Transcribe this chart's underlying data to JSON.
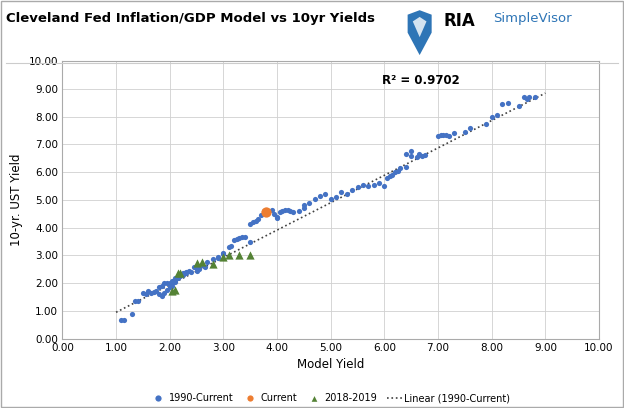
{
  "title": "Cleveland Fed Inflation/GDP Model vs 10yr Yields",
  "xlabel": "Model Yield",
  "ylabel": "10-yr. UST Yield",
  "r_squared": "R² = 0.9702",
  "xlim": [
    0.0,
    10.0
  ],
  "ylim": [
    0.0,
    10.0
  ],
  "xticks": [
    0.0,
    1.0,
    2.0,
    3.0,
    4.0,
    5.0,
    6.0,
    7.0,
    8.0,
    9.0,
    10.0
  ],
  "yticks": [
    0.0,
    1.0,
    2.0,
    3.0,
    4.0,
    5.0,
    6.0,
    7.0,
    8.0,
    9.0,
    10.0
  ],
  "blue_dots": [
    [
      1.1,
      0.67
    ],
    [
      1.15,
      0.68
    ],
    [
      1.3,
      0.88
    ],
    [
      1.35,
      1.35
    ],
    [
      1.4,
      1.35
    ],
    [
      1.5,
      1.65
    ],
    [
      1.55,
      1.62
    ],
    [
      1.6,
      1.7
    ],
    [
      1.65,
      1.65
    ],
    [
      1.7,
      1.68
    ],
    [
      1.75,
      1.72
    ],
    [
      1.8,
      1.85
    ],
    [
      1.8,
      1.6
    ],
    [
      1.85,
      1.9
    ],
    [
      1.85,
      1.55
    ],
    [
      1.9,
      2.0
    ],
    [
      1.9,
      1.65
    ],
    [
      1.95,
      2.0
    ],
    [
      1.95,
      1.75
    ],
    [
      2.0,
      2.0
    ],
    [
      2.0,
      1.95
    ],
    [
      2.0,
      1.85
    ],
    [
      2.05,
      2.08
    ],
    [
      2.05,
      2.0
    ],
    [
      2.05,
      1.9
    ],
    [
      2.1,
      2.2
    ],
    [
      2.1,
      2.1
    ],
    [
      2.1,
      2.05
    ],
    [
      2.15,
      2.25
    ],
    [
      2.15,
      2.2
    ],
    [
      2.2,
      2.32
    ],
    [
      2.2,
      2.28
    ],
    [
      2.2,
      2.25
    ],
    [
      2.25,
      2.35
    ],
    [
      2.25,
      2.3
    ],
    [
      2.3,
      2.4
    ],
    [
      2.3,
      2.35
    ],
    [
      2.35,
      2.45
    ],
    [
      2.4,
      2.4
    ],
    [
      2.45,
      2.6
    ],
    [
      2.5,
      2.5
    ],
    [
      2.5,
      2.45
    ],
    [
      2.55,
      2.55
    ],
    [
      2.55,
      2.5
    ],
    [
      2.6,
      2.65
    ],
    [
      2.65,
      2.6
    ],
    [
      2.7,
      2.75
    ],
    [
      2.8,
      2.88
    ],
    [
      2.9,
      2.95
    ],
    [
      2.9,
      2.9
    ],
    [
      3.0,
      3.08
    ],
    [
      3.0,
      3.05
    ],
    [
      3.1,
      3.3
    ],
    [
      3.15,
      3.35
    ],
    [
      3.2,
      3.55
    ],
    [
      3.25,
      3.6
    ],
    [
      3.3,
      3.62
    ],
    [
      3.35,
      3.65
    ],
    [
      3.4,
      3.68
    ],
    [
      3.5,
      3.5
    ],
    [
      3.5,
      4.15
    ],
    [
      3.55,
      4.2
    ],
    [
      3.6,
      4.25
    ],
    [
      3.65,
      4.3
    ],
    [
      3.7,
      4.45
    ],
    [
      3.75,
      4.6
    ],
    [
      3.8,
      4.65
    ],
    [
      3.9,
      4.65
    ],
    [
      3.95,
      4.5
    ],
    [
      4.0,
      4.4
    ],
    [
      4.0,
      4.35
    ],
    [
      4.05,
      4.55
    ],
    [
      4.1,
      4.6
    ],
    [
      4.15,
      4.62
    ],
    [
      4.2,
      4.65
    ],
    [
      4.25,
      4.6
    ],
    [
      4.3,
      4.55
    ],
    [
      4.4,
      4.6
    ],
    [
      4.5,
      4.7
    ],
    [
      4.5,
      4.8
    ],
    [
      4.6,
      4.9
    ],
    [
      4.7,
      5.05
    ],
    [
      4.8,
      5.15
    ],
    [
      4.9,
      5.2
    ],
    [
      5.0,
      5.05
    ],
    [
      5.1,
      5.1
    ],
    [
      5.2,
      5.3
    ],
    [
      5.3,
      5.2
    ],
    [
      5.4,
      5.35
    ],
    [
      5.5,
      5.45
    ],
    [
      5.6,
      5.55
    ],
    [
      5.7,
      5.5
    ],
    [
      5.8,
      5.55
    ],
    [
      5.9,
      5.6
    ],
    [
      6.0,
      5.5
    ],
    [
      6.05,
      5.8
    ],
    [
      6.1,
      5.85
    ],
    [
      6.15,
      5.9
    ],
    [
      6.2,
      6.0
    ],
    [
      6.25,
      6.05
    ],
    [
      6.3,
      6.15
    ],
    [
      6.4,
      6.2
    ],
    [
      6.4,
      6.65
    ],
    [
      6.5,
      6.75
    ],
    [
      6.5,
      6.6
    ],
    [
      6.6,
      6.55
    ],
    [
      6.65,
      6.65
    ],
    [
      6.7,
      6.6
    ],
    [
      6.75,
      6.62
    ],
    [
      7.0,
      7.3
    ],
    [
      7.05,
      7.35
    ],
    [
      7.1,
      7.35
    ],
    [
      7.15,
      7.35
    ],
    [
      7.2,
      7.3
    ],
    [
      7.3,
      7.4
    ],
    [
      7.5,
      7.45
    ],
    [
      7.6,
      7.6
    ],
    [
      7.9,
      7.75
    ],
    [
      8.0,
      8.0
    ],
    [
      8.1,
      8.05
    ],
    [
      8.2,
      8.45
    ],
    [
      8.3,
      8.5
    ],
    [
      8.5,
      8.4
    ],
    [
      8.6,
      8.7
    ],
    [
      8.65,
      8.65
    ],
    [
      8.7,
      8.7
    ],
    [
      8.8,
      8.7
    ]
  ],
  "orange_dots": [
    [
      3.8,
      4.55
    ]
  ],
  "green_triangles": [
    [
      2.05,
      1.72
    ],
    [
      2.1,
      1.75
    ],
    [
      2.15,
      2.35
    ],
    [
      2.2,
      2.38
    ],
    [
      2.5,
      2.72
    ],
    [
      2.6,
      2.78
    ],
    [
      2.8,
      2.7
    ],
    [
      3.0,
      2.95
    ],
    [
      3.1,
      3.0
    ],
    [
      3.3,
      3.0
    ],
    [
      3.5,
      3.0
    ]
  ],
  "trendline_x": [
    1.0,
    9.0
  ],
  "trendline_y": [
    0.95,
    8.85
  ],
  "blue_color": "#4472C4",
  "orange_color": "#ED7D31",
  "green_color": "#548235",
  "trendline_color": "#404040",
  "bg_color": "#FFFFFF",
  "plot_bg_color": "#FFFFFF",
  "grid_color": "#D0D0D0",
  "border_color": "#AAAAAA",
  "title_color": "#000000",
  "ria_black": "#000000",
  "ria_blue": "#2E75B6"
}
